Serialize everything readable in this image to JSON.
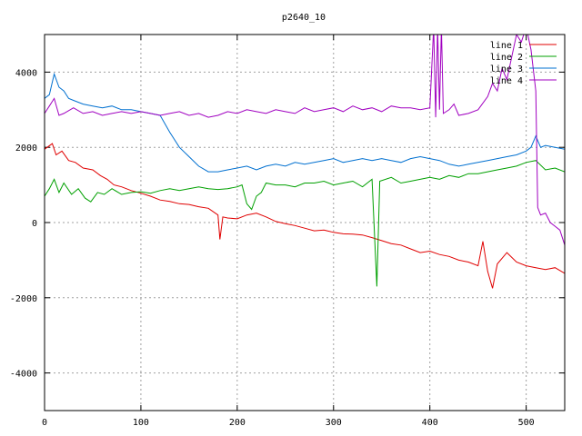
{
  "chart_data": {
    "type": "line",
    "title": "p2640_10",
    "xlabel": "",
    "ylabel": "",
    "xlim": [
      0,
      540
    ],
    "ylim": [
      -5000,
      5000
    ],
    "xticks": [
      0,
      100,
      200,
      300,
      400,
      500
    ],
    "yticks": [
      -4000,
      -2000,
      0,
      2000,
      4000
    ],
    "grid": true,
    "legend_position": "top-right",
    "series": [
      {
        "name": "line 1",
        "color": "#e00000",
        "points": [
          [
            0,
            1950
          ],
          [
            8,
            2100
          ],
          [
            12,
            1800
          ],
          [
            18,
            1900
          ],
          [
            25,
            1650
          ],
          [
            32,
            1600
          ],
          [
            40,
            1450
          ],
          [
            50,
            1400
          ],
          [
            58,
            1250
          ],
          [
            65,
            1150
          ],
          [
            72,
            1000
          ],
          [
            80,
            950
          ],
          [
            90,
            850
          ],
          [
            100,
            780
          ],
          [
            110,
            700
          ],
          [
            120,
            600
          ],
          [
            130,
            560
          ],
          [
            140,
            500
          ],
          [
            150,
            480
          ],
          [
            160,
            420
          ],
          [
            170,
            380
          ],
          [
            180,
            200
          ],
          [
            182,
            -450
          ],
          [
            185,
            150
          ],
          [
            190,
            120
          ],
          [
            200,
            100
          ],
          [
            210,
            200
          ],
          [
            220,
            250
          ],
          [
            230,
            150
          ],
          [
            240,
            30
          ],
          [
            250,
            -30
          ],
          [
            260,
            -80
          ],
          [
            270,
            -150
          ],
          [
            280,
            -220
          ],
          [
            290,
            -200
          ],
          [
            300,
            -260
          ],
          [
            310,
            -300
          ],
          [
            320,
            -310
          ],
          [
            330,
            -330
          ],
          [
            340,
            -400
          ],
          [
            350,
            -480
          ],
          [
            360,
            -560
          ],
          [
            370,
            -600
          ],
          [
            380,
            -700
          ],
          [
            390,
            -800
          ],
          [
            400,
            -760
          ],
          [
            410,
            -850
          ],
          [
            420,
            -900
          ],
          [
            430,
            -1000
          ],
          [
            440,
            -1050
          ],
          [
            450,
            -1150
          ],
          [
            455,
            -500
          ],
          [
            460,
            -1300
          ],
          [
            465,
            -1750
          ],
          [
            470,
            -1100
          ],
          [
            480,
            -800
          ],
          [
            490,
            -1050
          ],
          [
            500,
            -1150
          ],
          [
            510,
            -1200
          ],
          [
            520,
            -1250
          ],
          [
            530,
            -1200
          ],
          [
            540,
            -1350
          ]
        ]
      },
      {
        "name": "line 2",
        "color": "#00a000",
        "points": [
          [
            0,
            700
          ],
          [
            5,
            900
          ],
          [
            10,
            1150
          ],
          [
            15,
            800
          ],
          [
            20,
            1050
          ],
          [
            28,
            750
          ],
          [
            35,
            900
          ],
          [
            42,
            650
          ],
          [
            48,
            550
          ],
          [
            55,
            800
          ],
          [
            62,
            750
          ],
          [
            70,
            900
          ],
          [
            80,
            750
          ],
          [
            90,
            800
          ],
          [
            100,
            820
          ],
          [
            110,
            780
          ],
          [
            120,
            850
          ],
          [
            130,
            900
          ],
          [
            140,
            850
          ],
          [
            150,
            900
          ],
          [
            160,
            950
          ],
          [
            170,
            900
          ],
          [
            180,
            880
          ],
          [
            190,
            900
          ],
          [
            200,
            950
          ],
          [
            205,
            1000
          ],
          [
            210,
            500
          ],
          [
            215,
            350
          ],
          [
            220,
            700
          ],
          [
            225,
            800
          ],
          [
            230,
            1050
          ],
          [
            240,
            1000
          ],
          [
            250,
            1000
          ],
          [
            260,
            950
          ],
          [
            270,
            1050
          ],
          [
            280,
            1050
          ],
          [
            290,
            1100
          ],
          [
            300,
            1000
          ],
          [
            310,
            1050
          ],
          [
            320,
            1100
          ],
          [
            330,
            950
          ],
          [
            340,
            1150
          ],
          [
            345,
            -1700
          ],
          [
            348,
            1100
          ],
          [
            360,
            1200
          ],
          [
            370,
            1050
          ],
          [
            380,
            1100
          ],
          [
            390,
            1150
          ],
          [
            400,
            1200
          ],
          [
            410,
            1150
          ],
          [
            420,
            1250
          ],
          [
            430,
            1200
          ],
          [
            440,
            1300
          ],
          [
            450,
            1300
          ],
          [
            460,
            1350
          ],
          [
            470,
            1400
          ],
          [
            480,
            1450
          ],
          [
            490,
            1500
          ],
          [
            500,
            1600
          ],
          [
            510,
            1650
          ],
          [
            520,
            1400
          ],
          [
            530,
            1450
          ],
          [
            540,
            1350
          ]
        ]
      },
      {
        "name": "line 3",
        "color": "#0070d0",
        "points": [
          [
            0,
            3300
          ],
          [
            5,
            3400
          ],
          [
            10,
            3950
          ],
          [
            15,
            3600
          ],
          [
            20,
            3500
          ],
          [
            25,
            3300
          ],
          [
            30,
            3250
          ],
          [
            40,
            3150
          ],
          [
            50,
            3100
          ],
          [
            60,
            3050
          ],
          [
            70,
            3100
          ],
          [
            80,
            3000
          ],
          [
            90,
            3000
          ],
          [
            100,
            2950
          ],
          [
            110,
            2900
          ],
          [
            120,
            2850
          ],
          [
            130,
            2400
          ],
          [
            140,
            2000
          ],
          [
            150,
            1750
          ],
          [
            160,
            1500
          ],
          [
            170,
            1350
          ],
          [
            180,
            1350
          ],
          [
            190,
            1400
          ],
          [
            200,
            1450
          ],
          [
            210,
            1500
          ],
          [
            220,
            1400
          ],
          [
            230,
            1500
          ],
          [
            240,
            1550
          ],
          [
            250,
            1500
          ],
          [
            260,
            1600
          ],
          [
            270,
            1550
          ],
          [
            280,
            1600
          ],
          [
            290,
            1650
          ],
          [
            300,
            1700
          ],
          [
            310,
            1600
          ],
          [
            320,
            1650
          ],
          [
            330,
            1700
          ],
          [
            340,
            1650
          ],
          [
            350,
            1700
          ],
          [
            360,
            1650
          ],
          [
            370,
            1600
          ],
          [
            380,
            1700
          ],
          [
            390,
            1750
          ],
          [
            400,
            1700
          ],
          [
            410,
            1650
          ],
          [
            420,
            1550
          ],
          [
            430,
            1500
          ],
          [
            440,
            1550
          ],
          [
            450,
            1600
          ],
          [
            460,
            1650
          ],
          [
            470,
            1700
          ],
          [
            480,
            1750
          ],
          [
            490,
            1800
          ],
          [
            500,
            1900
          ],
          [
            505,
            2000
          ],
          [
            510,
            2300
          ],
          [
            515,
            2000
          ],
          [
            520,
            2050
          ],
          [
            530,
            2000
          ],
          [
            540,
            1950
          ]
        ]
      },
      {
        "name": "line 4",
        "color": "#a000c0",
        "points": [
          [
            0,
            2900
          ],
          [
            5,
            3100
          ],
          [
            10,
            3300
          ],
          [
            15,
            2850
          ],
          [
            20,
            2900
          ],
          [
            30,
            3050
          ],
          [
            40,
            2900
          ],
          [
            50,
            2950
          ],
          [
            60,
            2850
          ],
          [
            70,
            2900
          ],
          [
            80,
            2950
          ],
          [
            90,
            2900
          ],
          [
            100,
            2950
          ],
          [
            110,
            2900
          ],
          [
            120,
            2850
          ],
          [
            130,
            2900
          ],
          [
            140,
            2950
          ],
          [
            150,
            2850
          ],
          [
            160,
            2900
          ],
          [
            170,
            2800
          ],
          [
            180,
            2850
          ],
          [
            190,
            2950
          ],
          [
            200,
            2900
          ],
          [
            210,
            3000
          ],
          [
            220,
            2950
          ],
          [
            230,
            2900
          ],
          [
            240,
            3000
          ],
          [
            250,
            2950
          ],
          [
            260,
            2900
          ],
          [
            270,
            3050
          ],
          [
            280,
            2950
          ],
          [
            290,
            3000
          ],
          [
            300,
            3050
          ],
          [
            310,
            2950
          ],
          [
            320,
            3100
          ],
          [
            330,
            3000
          ],
          [
            340,
            3050
          ],
          [
            350,
            2950
          ],
          [
            360,
            3100
          ],
          [
            370,
            3050
          ],
          [
            380,
            3050
          ],
          [
            390,
            3000
          ],
          [
            400,
            3050
          ],
          [
            404,
            5200
          ],
          [
            406,
            2800
          ],
          [
            408,
            5200
          ],
          [
            410,
            3000
          ],
          [
            412,
            5200
          ],
          [
            414,
            2900
          ],
          [
            420,
            3000
          ],
          [
            425,
            3150
          ],
          [
            430,
            2850
          ],
          [
            440,
            2900
          ],
          [
            450,
            3000
          ],
          [
            460,
            3350
          ],
          [
            465,
            3700
          ],
          [
            470,
            3500
          ],
          [
            475,
            4100
          ],
          [
            480,
            3800
          ],
          [
            485,
            4400
          ],
          [
            490,
            5000
          ],
          [
            495,
            4800
          ],
          [
            500,
            5200
          ],
          [
            505,
            4600
          ],
          [
            510,
            3500
          ],
          [
            512,
            400
          ],
          [
            515,
            200
          ],
          [
            520,
            250
          ],
          [
            525,
            0
          ],
          [
            530,
            -100
          ],
          [
            535,
            -200
          ],
          [
            540,
            -600
          ]
        ]
      }
    ]
  }
}
